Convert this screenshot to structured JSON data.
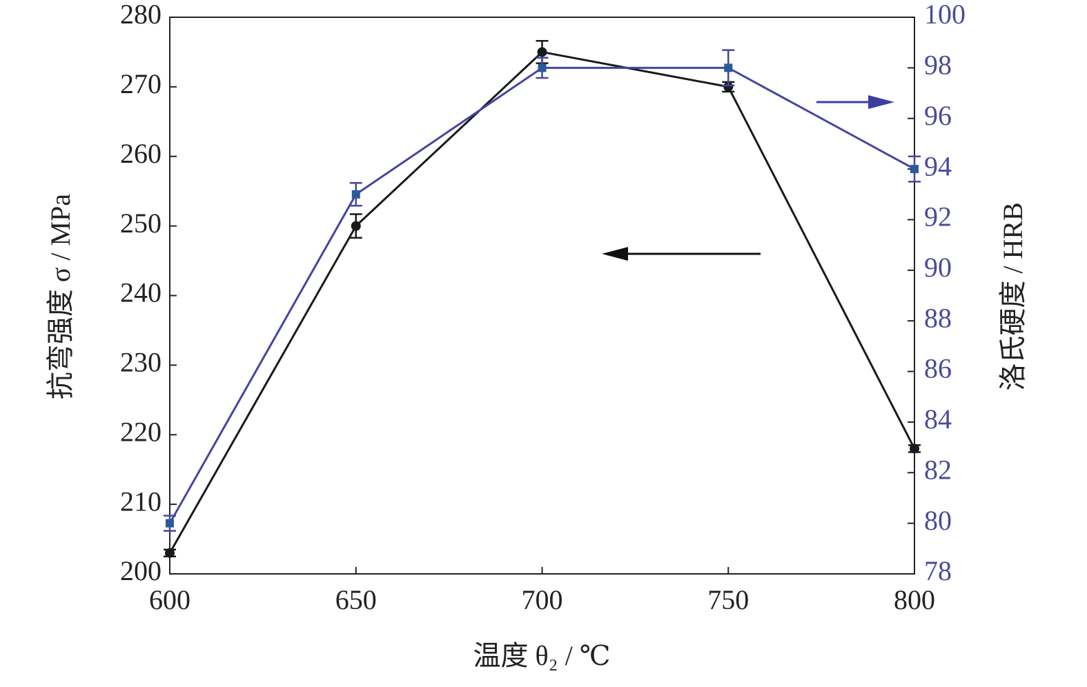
{
  "chart_data": {
    "type": "line",
    "x_label": "温度 θ₂ / ℃",
    "y_label": "抗弯强度 σ / MPa",
    "y2_label": "洛氏硬度 / HRB",
    "x": [
      600,
      650,
      700,
      750,
      800
    ],
    "xlim": [
      600,
      800
    ],
    "xticks": [
      600,
      650,
      700,
      750,
      800
    ],
    "ylim": [
      200,
      280
    ],
    "yticks": [
      200,
      210,
      220,
      230,
      240,
      250,
      260,
      270,
      280
    ],
    "y2lim": [
      78,
      100
    ],
    "y2ticks": [
      78,
      80,
      82,
      84,
      86,
      88,
      90,
      92,
      94,
      96,
      98,
      100
    ],
    "y2_tick_color": "#4a4a9a",
    "series": [
      {
        "color": "#1a1a1a",
        "marker": "circle",
        "values": [
          203,
          250,
          275,
          270,
          218
        ],
        "errors": [
          0.5,
          1.7,
          1.6,
          0.7,
          0.5
        ]
      },
      {
        "color": "#4545a0",
        "marker_color": "#2a5a9a",
        "marker": "square",
        "axis": "y2",
        "values": [
          80,
          93,
          98,
          98,
          94
        ],
        "errors": [
          0.3,
          0.45,
          0.4,
          0.7,
          0.5
        ]
      }
    ]
  }
}
